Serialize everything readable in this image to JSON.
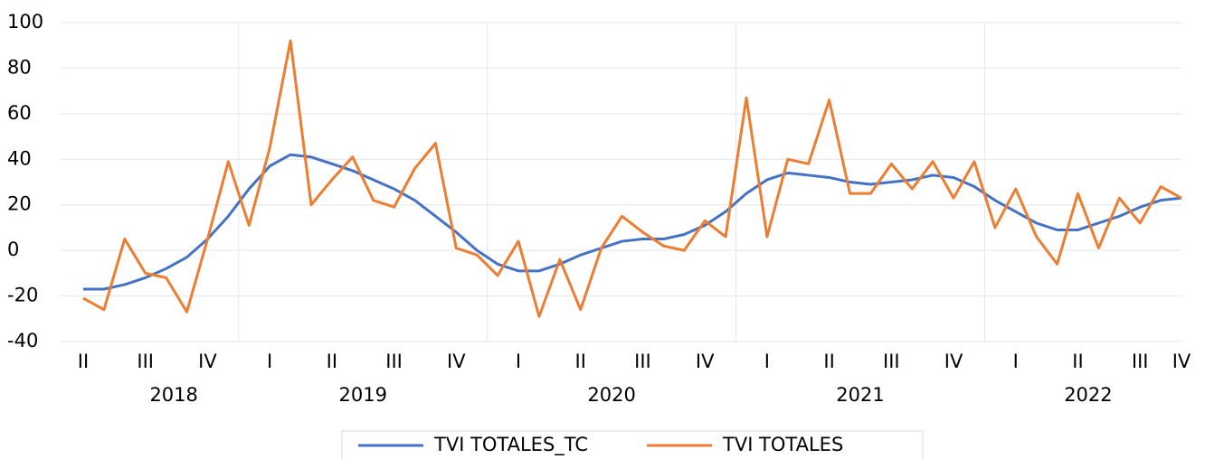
{
  "chart_data": {
    "type": "line",
    "categories": [
      "II",
      null,
      null,
      "III",
      null,
      null,
      "IV",
      null,
      null,
      "I",
      null,
      null,
      "II",
      null,
      null,
      "III",
      null,
      null,
      "IV",
      null,
      null,
      "I",
      null,
      null,
      "II",
      null,
      null,
      "III",
      null,
      null,
      "IV",
      null,
      null,
      "I",
      null,
      null,
      "II",
      null,
      null,
      "III",
      null,
      null,
      "IV",
      null,
      null,
      "I",
      null,
      null,
      "II",
      null,
      null,
      "III",
      null,
      "IV"
    ],
    "years": [
      "2018",
      "2019",
      "2020",
      "2021",
      "2022"
    ],
    "series": [
      {
        "name": "TVI TOTALES_TC",
        "color": "#4472c4",
        "values": [
          -17,
          -17,
          -15,
          -12,
          -8,
          -3,
          5,
          15,
          27,
          37,
          42,
          41,
          38,
          35,
          31,
          27,
          22,
          15,
          8,
          0,
          -6,
          -9,
          -9,
          -6,
          -2,
          1,
          4,
          5,
          5,
          7,
          11,
          17,
          25,
          31,
          34,
          33,
          32,
          30,
          29,
          30,
          31,
          33,
          32,
          28,
          22,
          17,
          12,
          9,
          9,
          12,
          15,
          19,
          22,
          23
        ]
      },
      {
        "name": "TVI TOTALES",
        "color": "#ed7d31",
        "values": [
          -21,
          -26,
          5,
          -10,
          -12,
          -27,
          5,
          39,
          11,
          45,
          92,
          20,
          31,
          41,
          22,
          19,
          36,
          47,
          1,
          -2,
          -11,
          4,
          -29,
          -4,
          -26,
          1,
          15,
          8,
          2,
          0,
          13,
          6,
          67,
          6,
          40,
          38,
          66,
          25,
          25,
          38,
          27,
          39,
          23,
          39,
          10,
          27,
          6,
          -6,
          25,
          1,
          23,
          12,
          28,
          23
        ]
      }
    ],
    "ylim": [
      -40,
      100
    ],
    "yticks": [
      -40,
      -20,
      0,
      20,
      40,
      60,
      80,
      100
    ],
    "grid": true,
    "legend": "bottom"
  }
}
